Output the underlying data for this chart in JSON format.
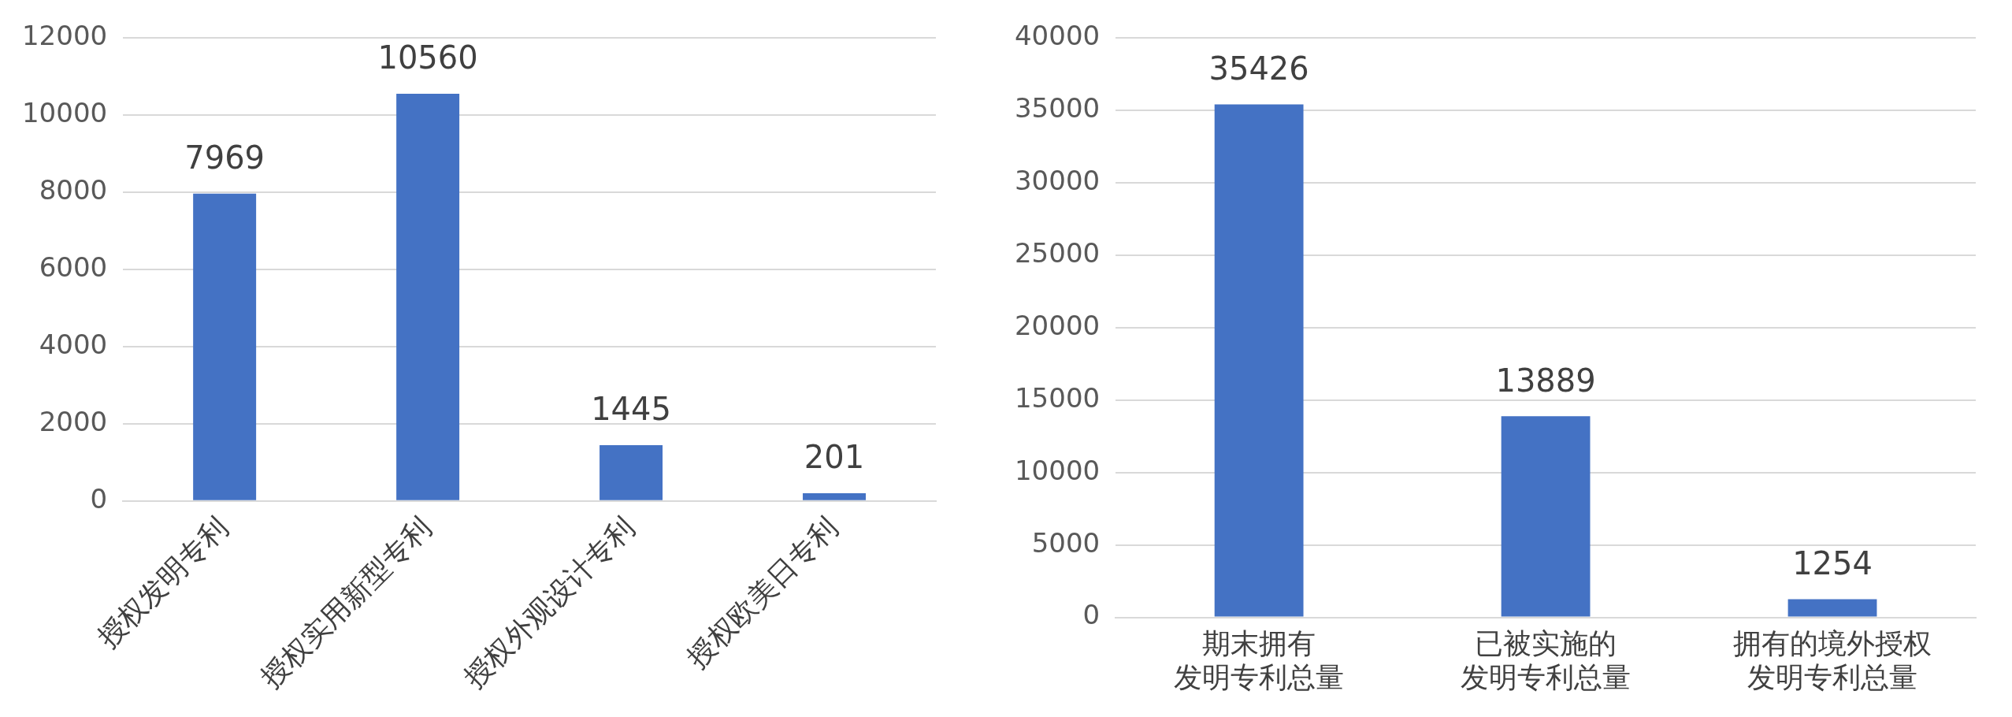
{
  "chart_data": [
    {
      "type": "bar",
      "categories": [
        "授权发明专利",
        "授权实用新型专利",
        "授权外观设计专利",
        "授权欧美日专利"
      ],
      "values": [
        7969,
        10560,
        1445,
        201
      ],
      "color": "#4472c4",
      "ylim": [
        0,
        12000
      ],
      "yticks": [
        0,
        2000,
        4000,
        6000,
        8000,
        10000,
        12000
      ],
      "grid": "y",
      "data_labels": true,
      "legend": false
    },
    {
      "type": "bar",
      "categories": [
        "期末拥有发明专利总量",
        "已被实施的发明专利总量",
        "拥有的境外授权发明专利总量"
      ],
      "values": [
        35426,
        13889,
        1254
      ],
      "color": "#4472c4",
      "ylim": [
        0,
        40000
      ],
      "yticks": [
        0,
        5000,
        10000,
        15000,
        20000,
        25000,
        30000,
        35000,
        40000
      ],
      "grid": "y",
      "data_labels": true,
      "legend": false
    }
  ]
}
